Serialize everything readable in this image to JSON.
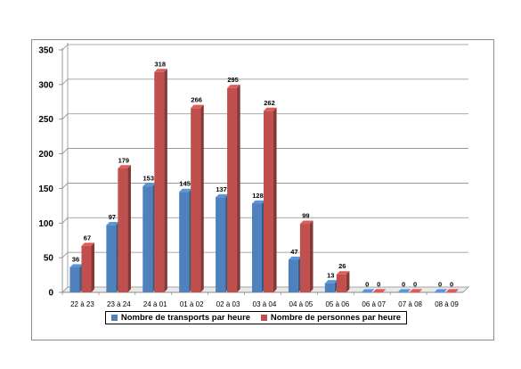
{
  "chart_data": {
    "type": "bar",
    "title": "",
    "xlabel": "",
    "ylabel": "",
    "ylim": [
      0,
      350
    ],
    "yticks": [
      0,
      50,
      100,
      150,
      200,
      250,
      300,
      350
    ],
    "grid": true,
    "legend_position": "bottom",
    "three_d": true,
    "categories": [
      "22 à 23",
      "23 à 24",
      "24 à 01",
      "01 à 02",
      "02 à 03",
      "03 à 04",
      "04 à 05",
      "05 à 06",
      "06 à 07",
      "07 à 08",
      "08 à 09"
    ],
    "series": [
      {
        "name": "Nombre de transports par heure",
        "color": "#4f81bd",
        "values": [
          36,
          97,
          153,
          145,
          137,
          128,
          47,
          13,
          0,
          0,
          0
        ]
      },
      {
        "name": "Nombre de personnes par heure",
        "color": "#c0504d",
        "values": [
          67,
          179,
          318,
          266,
          295,
          262,
          99,
          26,
          0,
          0,
          0
        ]
      }
    ]
  }
}
